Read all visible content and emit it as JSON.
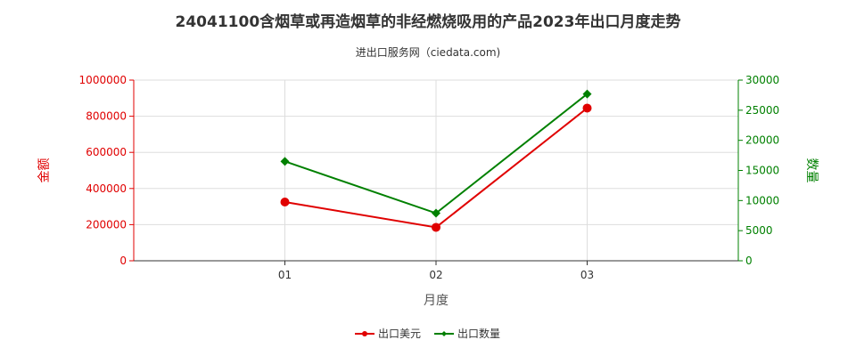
{
  "title": "24041100含烟草或再造烟草的非经燃烧吸用的产品2023年出口月度走势",
  "subtitle": "进出口服务网（ciedata.com)",
  "chart_data": {
    "type": "line",
    "x": [
      "01",
      "02",
      "03"
    ],
    "xlabel": "月度",
    "y_left": {
      "label": "金额",
      "range": [
        0,
        1000000
      ],
      "ticks": [
        "0",
        "200000",
        "400000",
        "600000",
        "800000",
        "1000000"
      ],
      "color": "#e00000"
    },
    "y_right": {
      "label": "数量",
      "range": [
        0,
        30000
      ],
      "ticks": [
        "0",
        "5000",
        "10000",
        "15000",
        "20000",
        "25000",
        "30000"
      ],
      "color": "#008000"
    },
    "grid": true,
    "legend_position": "bottom-center",
    "series": [
      {
        "name": "出口美元",
        "axis": "left",
        "color": "#e00000",
        "marker": "circle",
        "values": [
          325000,
          185000,
          845000
        ]
      },
      {
        "name": "出口数量",
        "axis": "right",
        "color": "#008000",
        "marker": "diamond",
        "values": [
          16500,
          7900,
          27700
        ]
      }
    ]
  }
}
